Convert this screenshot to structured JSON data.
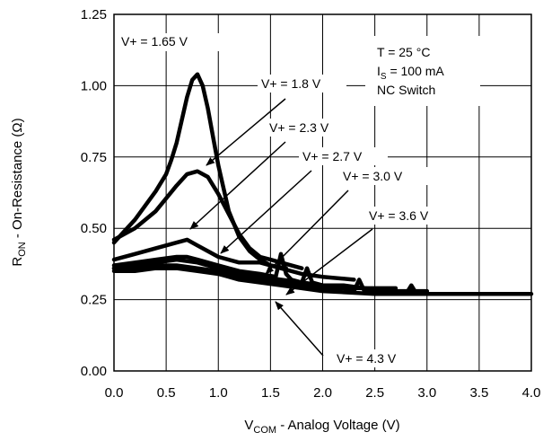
{
  "chart_data": {
    "type": "line",
    "xlabel": {
      "main": "V",
      "sub": "COM",
      "rest": " - Analog Voltage (V)"
    },
    "ylabel": {
      "main": "R",
      "sub": "ON",
      "rest": " - On-Resistance (Ω)"
    },
    "xlim": [
      0,
      4
    ],
    "ylim": [
      0,
      1.25
    ],
    "xticks": [
      "0.0",
      "0.5",
      "1.0",
      "1.5",
      "2.0",
      "2.5",
      "3.0",
      "3.5",
      "4.0"
    ],
    "yticks": [
      "0.00",
      "0.25",
      "0.50",
      "0.75",
      "1.00",
      "1.25"
    ],
    "grid": true,
    "conditions": {
      "temp": "T = 25 °C",
      "current": {
        "main": "I",
        "sub": "S",
        "rest": " = 100 mA"
      },
      "switch": "NC Switch"
    },
    "series": [
      {
        "name": "V+ = 1.65 V",
        "x": [
          0.0,
          0.1,
          0.2,
          0.3,
          0.4,
          0.5,
          0.55,
          0.6,
          0.65,
          0.7,
          0.75,
          0.8,
          0.85,
          0.9,
          0.95,
          1.0,
          1.05,
          1.1,
          1.2,
          1.3,
          1.4,
          1.5,
          1.65
        ],
        "y": [
          0.45,
          0.49,
          0.53,
          0.58,
          0.63,
          0.69,
          0.74,
          0.8,
          0.88,
          0.96,
          1.02,
          1.04,
          1.0,
          0.92,
          0.82,
          0.72,
          0.64,
          0.56,
          0.47,
          0.42,
          0.39,
          0.37,
          0.36
        ]
      },
      {
        "name": "V+ = 1.8 V",
        "x": [
          0.0,
          0.2,
          0.4,
          0.6,
          0.7,
          0.8,
          0.9,
          1.0,
          1.1,
          1.2,
          1.3,
          1.4,
          1.5,
          1.6,
          1.8
        ],
        "y": [
          0.46,
          0.5,
          0.56,
          0.65,
          0.69,
          0.7,
          0.68,
          0.62,
          0.55,
          0.48,
          0.43,
          0.4,
          0.39,
          0.38,
          0.36
        ]
      },
      {
        "name": "V+ = 2.3 V",
        "x": [
          0.0,
          0.2,
          0.4,
          0.6,
          0.7,
          0.8,
          0.9,
          1.0,
          1.2,
          1.4,
          1.6,
          1.8,
          2.0,
          2.3
        ],
        "y": [
          0.39,
          0.41,
          0.43,
          0.45,
          0.46,
          0.44,
          0.42,
          0.4,
          0.38,
          0.38,
          0.36,
          0.34,
          0.33,
          0.32
        ]
      },
      {
        "name": "V+ = 2.7 V",
        "x": [
          0.0,
          0.2,
          0.4,
          0.6,
          0.7,
          0.8,
          1.0,
          1.2,
          1.4,
          1.55,
          1.6,
          1.65,
          1.7,
          1.8,
          2.0,
          2.2,
          2.4,
          2.7
        ],
        "y": [
          0.37,
          0.38,
          0.39,
          0.4,
          0.4,
          0.39,
          0.37,
          0.35,
          0.34,
          0.33,
          0.41,
          0.34,
          0.32,
          0.31,
          0.3,
          0.3,
          0.29,
          0.29
        ]
      },
      {
        "name": "V+ = 3.0 V",
        "x": [
          0.0,
          0.2,
          0.4,
          0.6,
          0.8,
          1.0,
          1.2,
          1.4,
          1.6,
          1.8,
          1.85,
          1.9,
          2.0,
          2.2,
          2.4,
          2.6,
          2.8,
          3.0
        ],
        "y": [
          0.36,
          0.37,
          0.38,
          0.39,
          0.38,
          0.36,
          0.34,
          0.33,
          0.32,
          0.31,
          0.36,
          0.31,
          0.3,
          0.29,
          0.29,
          0.28,
          0.28,
          0.28
        ]
      },
      {
        "name": "V+ = 3.6 V",
        "x": [
          0.0,
          0.2,
          0.4,
          0.6,
          0.8,
          1.0,
          1.2,
          1.4,
          1.6,
          1.8,
          2.0,
          2.2,
          2.3,
          2.35,
          2.4,
          2.6,
          2.8,
          3.0,
          3.3,
          3.6
        ],
        "y": [
          0.36,
          0.36,
          0.37,
          0.37,
          0.36,
          0.35,
          0.33,
          0.32,
          0.31,
          0.3,
          0.29,
          0.29,
          0.28,
          0.32,
          0.28,
          0.28,
          0.27,
          0.27,
          0.27,
          0.27
        ]
      },
      {
        "name": "V+ = 4.3 V",
        "x": [
          0.0,
          0.2,
          0.4,
          0.6,
          0.8,
          1.0,
          1.2,
          1.4,
          1.6,
          1.8,
          2.0,
          2.5,
          2.8,
          2.85,
          2.9,
          3.0,
          3.5,
          4.0
        ],
        "y": [
          0.35,
          0.35,
          0.36,
          0.36,
          0.35,
          0.34,
          0.32,
          0.31,
          0.3,
          0.29,
          0.28,
          0.27,
          0.27,
          0.3,
          0.27,
          0.27,
          0.27,
          0.27
        ]
      }
    ],
    "annotations": [
      {
        "text": "V+ = 1.65 V",
        "series": "V+ = 1.65 V"
      },
      {
        "text": "V+ = 1.8 V",
        "series": "V+ = 1.8 V"
      },
      {
        "text": "V+ = 2.3 V",
        "series": "V+ = 2.3 V"
      },
      {
        "text": "V+ = 2.7 V",
        "series": "V+ = 2.7 V"
      },
      {
        "text": "V+ = 3.0 V",
        "series": "V+ = 3.0 V"
      },
      {
        "text": "V+ = 3.6 V",
        "series": "V+ = 3.6 V"
      },
      {
        "text": "V+ = 4.3 V",
        "series": "V+ = 4.3 V"
      }
    ]
  }
}
